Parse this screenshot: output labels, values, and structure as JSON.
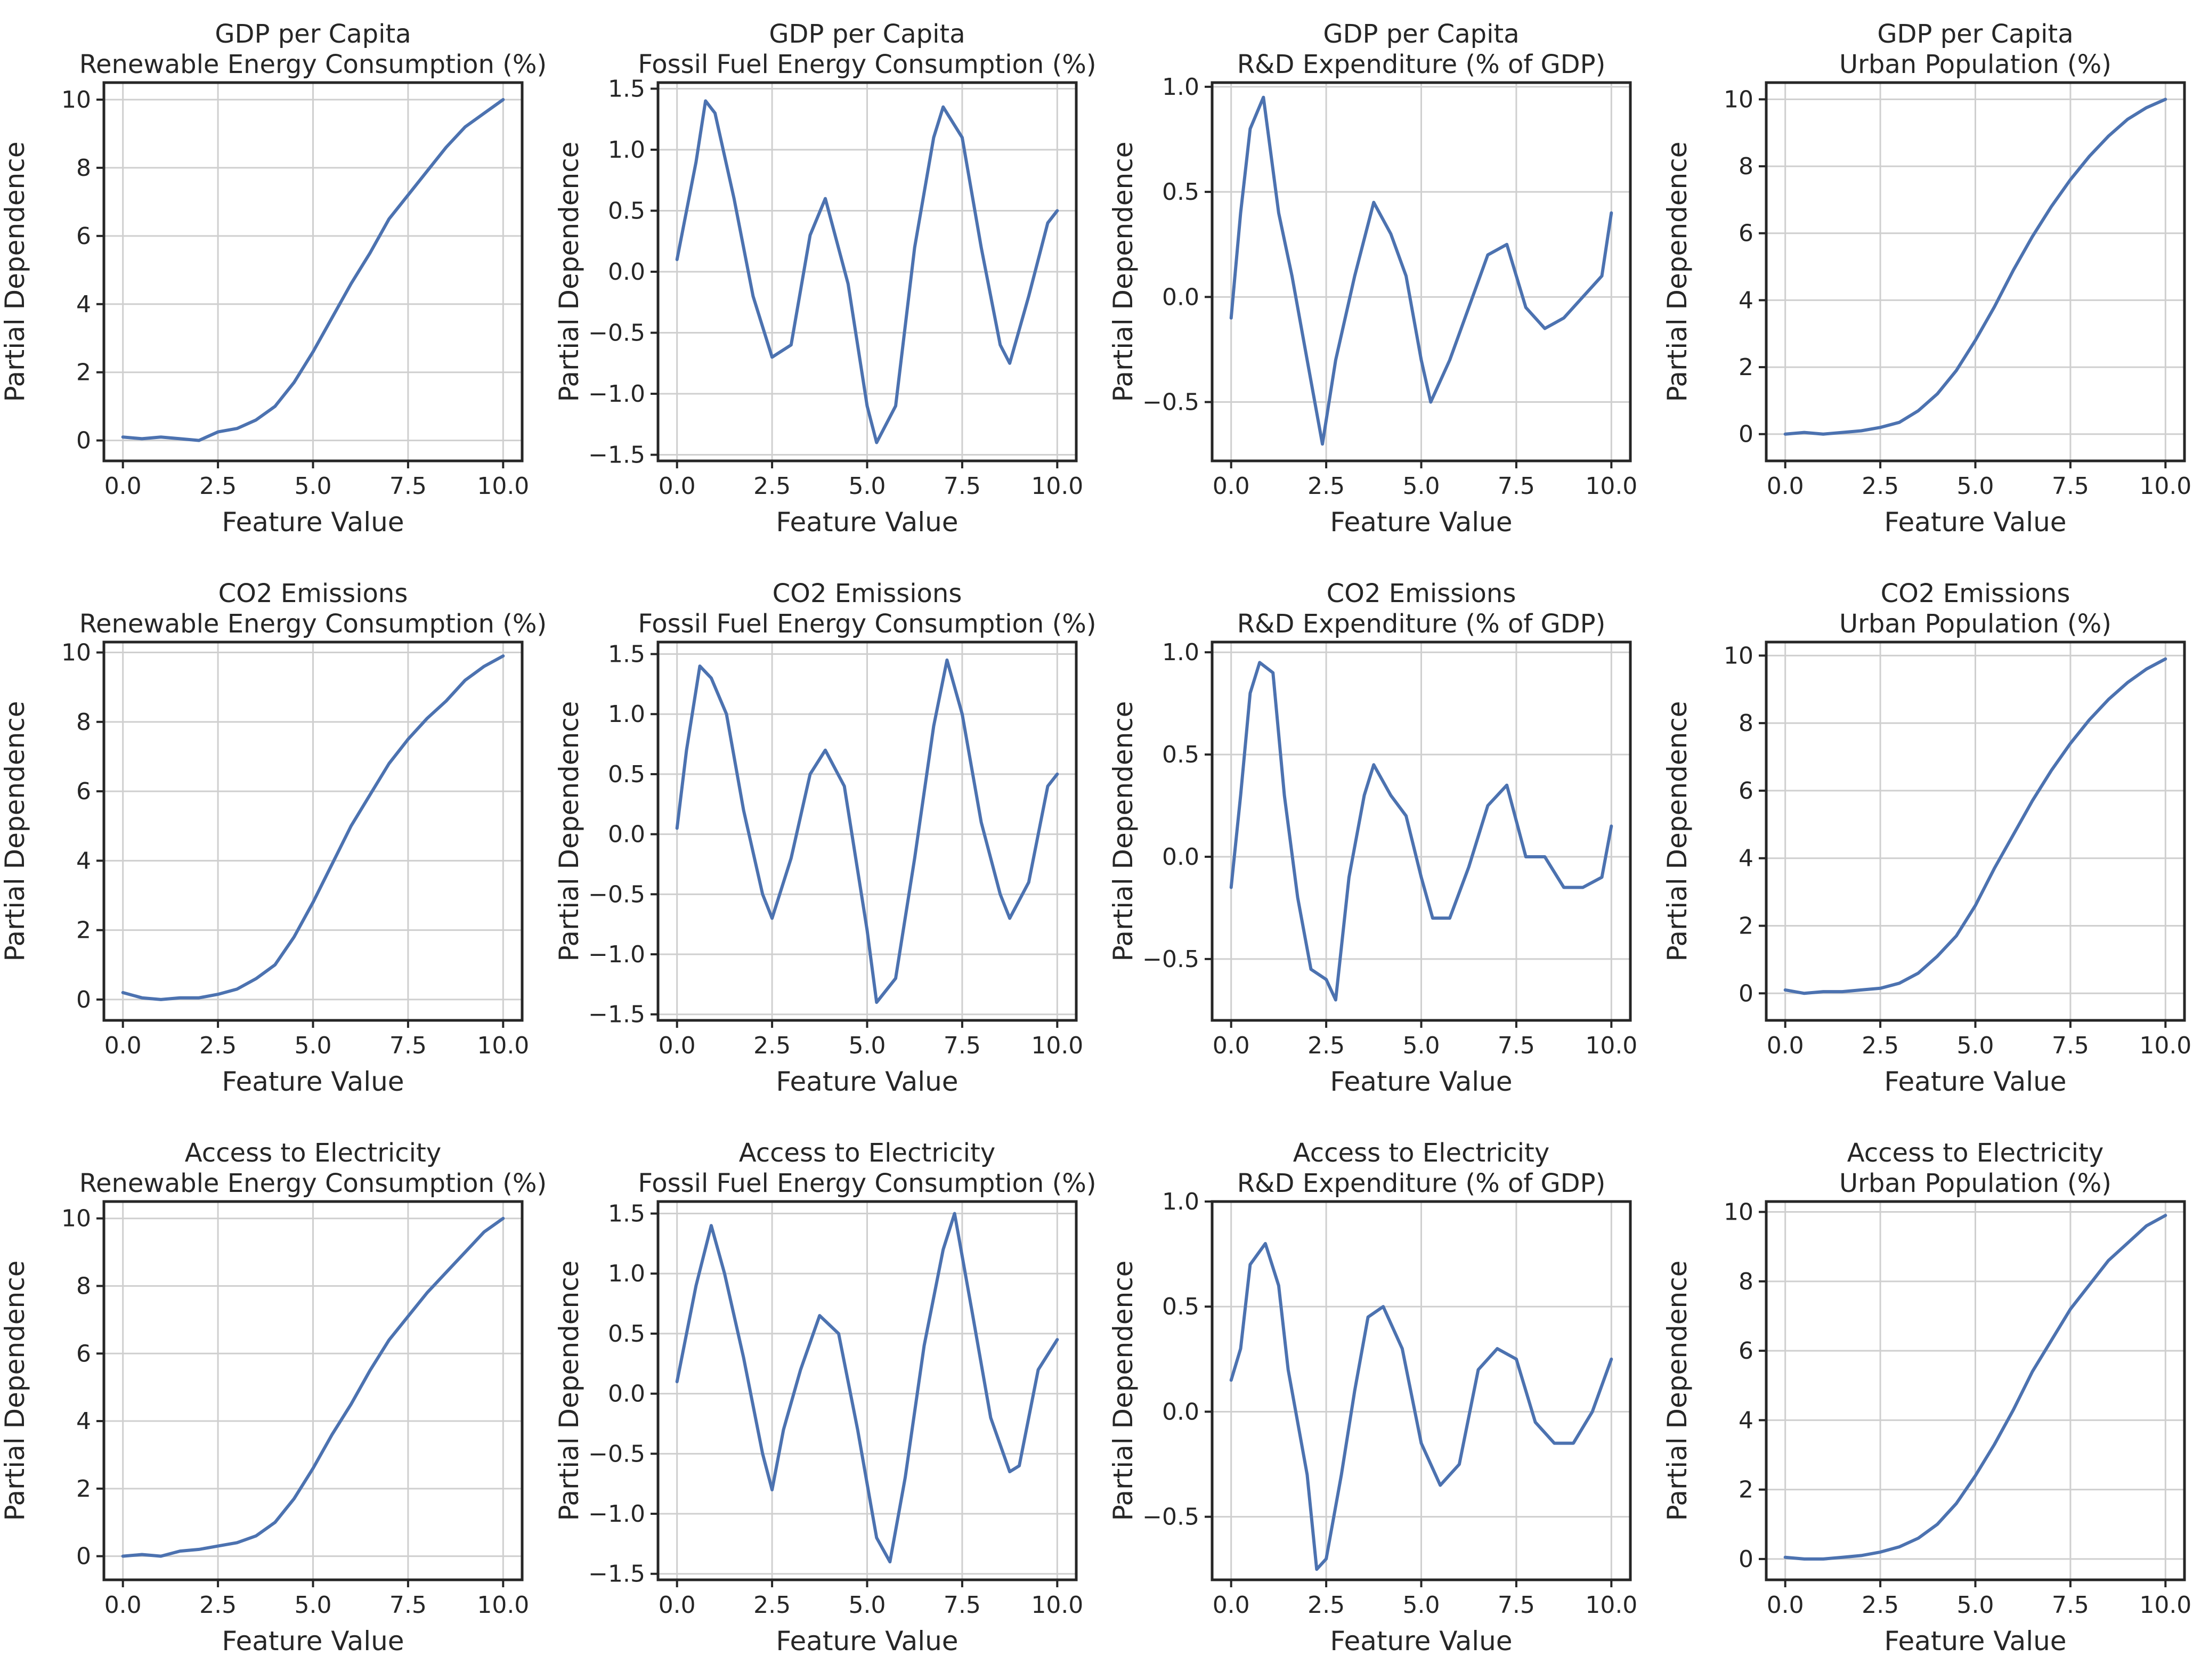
{
  "figure": {
    "xlabel": "Feature Value",
    "ylabel": "Partial Dependence",
    "line_color": "#4c72b0"
  },
  "chart_data": [
    {
      "type": "line",
      "target": "GDP per Capita",
      "feature": "Renewable Energy Consumption (%)",
      "xlim": [
        -0.5,
        10.5
      ],
      "ylim": [
        -0.6,
        10.5
      ],
      "xticks": [
        0,
        2.5,
        5,
        7.5,
        10
      ],
      "xtick_labels": [
        "0.0",
        "2.5",
        "5.0",
        "7.5",
        "10.0"
      ],
      "yticks": [
        0,
        2,
        4,
        6,
        8,
        10
      ],
      "ytick_labels": [
        "0",
        "2",
        "4",
        "6",
        "8",
        "10"
      ],
      "x": [
        0,
        0.5,
        1,
        1.5,
        2,
        2.5,
        3,
        3.5,
        4,
        4.5,
        5,
        5.5,
        6,
        6.5,
        7,
        7.5,
        8,
        8.5,
        9,
        9.5,
        10
      ],
      "y": [
        0.1,
        0.05,
        0.1,
        0.05,
        0.0,
        0.25,
        0.35,
        0.6,
        1.0,
        1.7,
        2.6,
        3.6,
        4.6,
        5.5,
        6.5,
        7.2,
        7.9,
        8.6,
        9.2,
        9.6,
        10.0
      ]
    },
    {
      "type": "line",
      "target": "GDP per Capita",
      "feature": "Fossil Fuel Energy Consumption (%)",
      "xlim": [
        -0.5,
        10.5
      ],
      "ylim": [
        -1.55,
        1.55
      ],
      "xticks": [
        0,
        2.5,
        5,
        7.5,
        10
      ],
      "xtick_labels": [
        "0.0",
        "2.5",
        "5.0",
        "7.5",
        "10.0"
      ],
      "yticks": [
        -1.5,
        -1,
        -0.5,
        0,
        0.5,
        1,
        1.5
      ],
      "ytick_labels": [
        "−1.5",
        "−1.0",
        "−0.5",
        "0.0",
        "0.5",
        "1.0",
        "1.5"
      ],
      "x": [
        0,
        0.5,
        0.75,
        1,
        1.5,
        2,
        2.5,
        3,
        3.5,
        3.9,
        4.5,
        5,
        5.25,
        5.75,
        6.25,
        6.75,
        7,
        7.5,
        8,
        8.5,
        8.75,
        9.25,
        9.75,
        10
      ],
      "y": [
        0.1,
        0.9,
        1.4,
        1.3,
        0.6,
        -0.2,
        -0.7,
        -0.6,
        0.3,
        0.6,
        -0.1,
        -1.1,
        -1.4,
        -1.1,
        0.2,
        1.1,
        1.35,
        1.1,
        0.2,
        -0.6,
        -0.75,
        -0.2,
        0.4,
        0.5
      ]
    },
    {
      "type": "line",
      "target": "GDP per Capita",
      "feature": "R&D Expenditure (% of GDP)",
      "xlim": [
        -0.5,
        10.5
      ],
      "ylim": [
        -0.78,
        1.02
      ],
      "xticks": [
        0,
        2.5,
        5,
        7.5,
        10
      ],
      "xtick_labels": [
        "0.0",
        "2.5",
        "5.0",
        "7.5",
        "10.0"
      ],
      "yticks": [
        -0.5,
        0,
        0.5,
        1
      ],
      "ytick_labels": [
        "−0.5",
        "0.0",
        "0.5",
        "1.0"
      ],
      "x": [
        0,
        0.25,
        0.5,
        0.85,
        1.25,
        1.6,
        2,
        2.4,
        2.75,
        3.25,
        3.75,
        4.2,
        4.6,
        5,
        5.25,
        5.75,
        6.25,
        6.75,
        7.25,
        7.75,
        8.25,
        8.75,
        9.25,
        9.75,
        10
      ],
      "y": [
        -0.1,
        0.4,
        0.8,
        0.95,
        0.4,
        0.1,
        -0.3,
        -0.7,
        -0.3,
        0.1,
        0.45,
        0.3,
        0.1,
        -0.3,
        -0.5,
        -0.3,
        -0.05,
        0.2,
        0.25,
        -0.05,
        -0.15,
        -0.1,
        0.0,
        0.1,
        0.4
      ]
    },
    {
      "type": "line",
      "target": "GDP per Capita",
      "feature": "Urban Population (%)",
      "xlim": [
        -0.5,
        10.5
      ],
      "ylim": [
        -0.8,
        10.5
      ],
      "xticks": [
        0,
        2.5,
        5,
        7.5,
        10
      ],
      "xtick_labels": [
        "0.0",
        "2.5",
        "5.0",
        "7.5",
        "10.0"
      ],
      "yticks": [
        0,
        2,
        4,
        6,
        8,
        10
      ],
      "ytick_labels": [
        "0",
        "2",
        "4",
        "6",
        "8",
        "10"
      ],
      "x": [
        0,
        0.5,
        1,
        1.5,
        2,
        2.5,
        3,
        3.5,
        4,
        4.5,
        5,
        5.5,
        6,
        6.5,
        7,
        7.5,
        8,
        8.5,
        9,
        9.5,
        10
      ],
      "y": [
        0.0,
        0.05,
        0.0,
        0.05,
        0.1,
        0.2,
        0.35,
        0.7,
        1.2,
        1.9,
        2.8,
        3.8,
        4.9,
        5.9,
        6.8,
        7.6,
        8.3,
        8.9,
        9.4,
        9.75,
        10.0
      ]
    },
    {
      "type": "line",
      "target": "CO2 Emissions",
      "feature": "Renewable Energy Consumption (%)",
      "xlim": [
        -0.5,
        10.5
      ],
      "ylim": [
        -0.6,
        10.3
      ],
      "xticks": [
        0,
        2.5,
        5,
        7.5,
        10
      ],
      "xtick_labels": [
        "0.0",
        "2.5",
        "5.0",
        "7.5",
        "10.0"
      ],
      "yticks": [
        0,
        2,
        4,
        6,
        8,
        10
      ],
      "ytick_labels": [
        "0",
        "2",
        "4",
        "6",
        "8",
        "10"
      ],
      "x": [
        0,
        0.5,
        1,
        1.5,
        2,
        2.5,
        3,
        3.5,
        4,
        4.5,
        5,
        5.5,
        6,
        6.5,
        7,
        7.5,
        8,
        8.5,
        9,
        9.5,
        10
      ],
      "y": [
        0.2,
        0.05,
        0.0,
        0.05,
        0.05,
        0.15,
        0.3,
        0.6,
        1.0,
        1.8,
        2.8,
        3.9,
        5.0,
        5.9,
        6.8,
        7.5,
        8.1,
        8.6,
        9.2,
        9.6,
        9.9
      ]
    },
    {
      "type": "line",
      "target": "CO2 Emissions",
      "feature": "Fossil Fuel Energy Consumption (%)",
      "xlim": [
        -0.5,
        10.5
      ],
      "ylim": [
        -1.55,
        1.6
      ],
      "xticks": [
        0,
        2.5,
        5,
        7.5,
        10
      ],
      "xtick_labels": [
        "0.0",
        "2.5",
        "5.0",
        "7.5",
        "10.0"
      ],
      "yticks": [
        -1.5,
        -1,
        -0.5,
        0,
        0.5,
        1,
        1.5
      ],
      "ytick_labels": [
        "−1.5",
        "−1.0",
        "−0.5",
        "0.0",
        "0.5",
        "1.0",
        "1.5"
      ],
      "x": [
        0,
        0.25,
        0.6,
        0.9,
        1.3,
        1.75,
        2.25,
        2.5,
        3,
        3.5,
        3.9,
        4.4,
        5,
        5.25,
        5.75,
        6.25,
        6.75,
        7.1,
        7.5,
        8,
        8.5,
        8.75,
        9.25,
        9.75,
        10
      ],
      "y": [
        0.05,
        0.7,
        1.4,
        1.3,
        1.0,
        0.2,
        -0.5,
        -0.7,
        -0.2,
        0.5,
        0.7,
        0.4,
        -0.8,
        -1.4,
        -1.2,
        -0.2,
        0.9,
        1.45,
        1.0,
        0.1,
        -0.5,
        -0.7,
        -0.4,
        0.4,
        0.5
      ]
    },
    {
      "type": "line",
      "target": "CO2 Emissions",
      "feature": "R&D Expenditure (% of GDP)",
      "xlim": [
        -0.5,
        10.5
      ],
      "ylim": [
        -0.8,
        1.05
      ],
      "xticks": [
        0,
        2.5,
        5,
        7.5,
        10
      ],
      "xtick_labels": [
        "0.0",
        "2.5",
        "5.0",
        "7.5",
        "10.0"
      ],
      "yticks": [
        -0.5,
        0,
        0.5,
        1
      ],
      "ytick_labels": [
        "−0.5",
        "0.0",
        "0.5",
        "1.0"
      ],
      "x": [
        0,
        0.25,
        0.5,
        0.75,
        1.1,
        1.4,
        1.75,
        2.1,
        2.5,
        2.75,
        3.1,
        3.5,
        3.75,
        4.2,
        4.6,
        5,
        5.3,
        5.75,
        6.25,
        6.75,
        7.25,
        7.75,
        8.25,
        8.75,
        9.25,
        9.75,
        10
      ],
      "y": [
        -0.15,
        0.3,
        0.8,
        0.95,
        0.9,
        0.3,
        -0.2,
        -0.55,
        -0.6,
        -0.7,
        -0.1,
        0.3,
        0.45,
        0.3,
        0.2,
        -0.1,
        -0.3,
        -0.3,
        -0.05,
        0.25,
        0.35,
        0.0,
        0.0,
        -0.15,
        -0.15,
        -0.1,
        0.15
      ]
    },
    {
      "type": "line",
      "target": "CO2 Emissions",
      "feature": "Urban Population (%)",
      "xlim": [
        -0.5,
        10.5
      ],
      "ylim": [
        -0.8,
        10.4
      ],
      "xticks": [
        0,
        2.5,
        5,
        7.5,
        10
      ],
      "xtick_labels": [
        "0.0",
        "2.5",
        "5.0",
        "7.5",
        "10.0"
      ],
      "yticks": [
        0,
        2,
        4,
        6,
        8,
        10
      ],
      "ytick_labels": [
        "0",
        "2",
        "4",
        "6",
        "8",
        "10"
      ],
      "x": [
        0,
        0.5,
        1,
        1.5,
        2,
        2.5,
        3,
        3.5,
        4,
        4.5,
        5,
        5.5,
        6,
        6.5,
        7,
        7.5,
        8,
        8.5,
        9,
        9.5,
        10
      ],
      "y": [
        0.1,
        0.0,
        0.05,
        0.05,
        0.1,
        0.15,
        0.3,
        0.6,
        1.1,
        1.7,
        2.6,
        3.7,
        4.7,
        5.7,
        6.6,
        7.4,
        8.1,
        8.7,
        9.2,
        9.6,
        9.9
      ]
    },
    {
      "type": "line",
      "target": "Access to Electricity",
      "feature": "Renewable Energy Consumption (%)",
      "xlim": [
        -0.5,
        10.5
      ],
      "ylim": [
        -0.7,
        10.5
      ],
      "xticks": [
        0,
        2.5,
        5,
        7.5,
        10
      ],
      "xtick_labels": [
        "0.0",
        "2.5",
        "5.0",
        "7.5",
        "10.0"
      ],
      "yticks": [
        0,
        2,
        4,
        6,
        8,
        10
      ],
      "ytick_labels": [
        "0",
        "2",
        "4",
        "6",
        "8",
        "10"
      ],
      "x": [
        0,
        0.5,
        1,
        1.5,
        2,
        2.5,
        3,
        3.5,
        4,
        4.5,
        5,
        5.5,
        6,
        6.5,
        7,
        7.5,
        8,
        8.5,
        9,
        9.5,
        10
      ],
      "y": [
        0.0,
        0.05,
        0.0,
        0.15,
        0.2,
        0.3,
        0.4,
        0.6,
        1.0,
        1.7,
        2.6,
        3.6,
        4.5,
        5.5,
        6.4,
        7.1,
        7.8,
        8.4,
        9.0,
        9.6,
        10.0
      ]
    },
    {
      "type": "line",
      "target": "Access to Electricity",
      "feature": "Fossil Fuel Energy Consumption (%)",
      "xlim": [
        -0.5,
        10.5
      ],
      "ylim": [
        -1.55,
        1.6
      ],
      "xticks": [
        0,
        2.5,
        5,
        7.5,
        10
      ],
      "xtick_labels": [
        "0.0",
        "2.5",
        "5.0",
        "7.5",
        "10.0"
      ],
      "yticks": [
        -1.5,
        -1,
        -0.5,
        0,
        0.5,
        1,
        1.5
      ],
      "ytick_labels": [
        "−1.5",
        "−1.0",
        "−0.5",
        "0.0",
        "0.5",
        "1.0",
        "1.5"
      ],
      "x": [
        0,
        0.5,
        0.9,
        1.25,
        1.75,
        2.25,
        2.5,
        2.8,
        3.25,
        3.75,
        4.25,
        4.75,
        5.25,
        5.6,
        6,
        6.5,
        7,
        7.3,
        7.75,
        8.25,
        8.75,
        9,
        9.5,
        10
      ],
      "y": [
        0.1,
        0.9,
        1.4,
        1.0,
        0.3,
        -0.5,
        -0.8,
        -0.3,
        0.2,
        0.65,
        0.5,
        -0.3,
        -1.2,
        -1.4,
        -0.7,
        0.4,
        1.2,
        1.5,
        0.7,
        -0.2,
        -0.65,
        -0.6,
        0.2,
        0.45
      ]
    },
    {
      "type": "line",
      "target": "Access to Electricity",
      "feature": "R&D Expenditure (% of GDP)",
      "xlim": [
        -0.5,
        10.5
      ],
      "ylim": [
        -0.8,
        1.0
      ],
      "xticks": [
        0,
        2.5,
        5,
        7.5,
        10
      ],
      "xtick_labels": [
        "0.0",
        "2.5",
        "5.0",
        "7.5",
        "10.0"
      ],
      "yticks": [
        -0.5,
        0,
        0.5,
        1
      ],
      "ytick_labels": [
        "−0.5",
        "0.0",
        "0.5",
        "1.0"
      ],
      "x": [
        0,
        0.25,
        0.5,
        0.9,
        1.25,
        1.5,
        2,
        2.25,
        2.5,
        2.9,
        3.25,
        3.6,
        4,
        4.5,
        5,
        5.5,
        6,
        6.5,
        7,
        7.5,
        8,
        8.5,
        9,
        9.5,
        10
      ],
      "y": [
        0.15,
        0.3,
        0.7,
        0.8,
        0.6,
        0.2,
        -0.3,
        -0.75,
        -0.7,
        -0.3,
        0.1,
        0.45,
        0.5,
        0.3,
        -0.15,
        -0.35,
        -0.25,
        0.2,
        0.3,
        0.25,
        -0.05,
        -0.15,
        -0.15,
        0.0,
        0.25
      ]
    },
    {
      "type": "line",
      "target": "Access to Electricity",
      "feature": "Urban Population (%)",
      "xlim": [
        -0.5,
        10.5
      ],
      "ylim": [
        -0.6,
        10.3
      ],
      "xticks": [
        0,
        2.5,
        5,
        7.5,
        10
      ],
      "xtick_labels": [
        "0.0",
        "2.5",
        "5.0",
        "7.5",
        "10.0"
      ],
      "yticks": [
        0,
        2,
        4,
        6,
        8,
        10
      ],
      "ytick_labels": [
        "0",
        "2",
        "4",
        "6",
        "8",
        "10"
      ],
      "x": [
        0,
        0.5,
        1,
        1.5,
        2,
        2.5,
        3,
        3.5,
        4,
        4.5,
        5,
        5.5,
        6,
        6.5,
        7,
        7.5,
        8,
        8.5,
        9,
        9.5,
        10
      ],
      "y": [
        0.05,
        0.0,
        0.0,
        0.05,
        0.1,
        0.2,
        0.35,
        0.6,
        1.0,
        1.6,
        2.4,
        3.3,
        4.3,
        5.4,
        6.3,
        7.2,
        7.9,
        8.6,
        9.1,
        9.6,
        9.9
      ]
    }
  ]
}
